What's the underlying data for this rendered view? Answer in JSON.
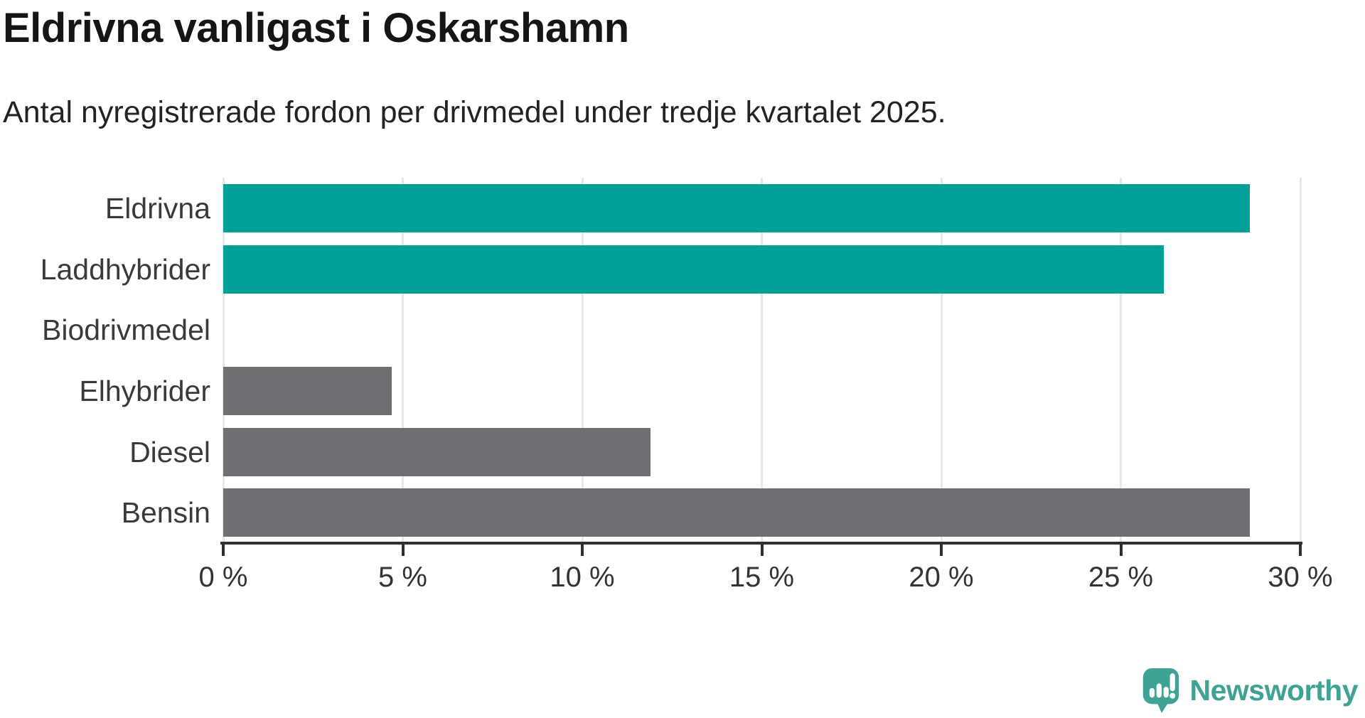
{
  "header": {
    "title": "Eldrivna vanligast i Oskarshamn",
    "subtitle": "Antal nyregistrerade fordon per drivmedel under tredje kvartalet 2025."
  },
  "chart_data": {
    "type": "bar",
    "orientation": "horizontal",
    "title": "Eldrivna vanligast i Oskarshamn",
    "subtitle": "Antal nyregistrerade fordon per drivmedel under tredje kvartalet 2025.",
    "categories": [
      "Eldrivna",
      "Laddhybrider",
      "Biodrivmedel",
      "Elhybrider",
      "Diesel",
      "Bensin"
    ],
    "values": [
      28.6,
      26.2,
      0,
      4.7,
      11.9,
      28.6
    ],
    "bar_colors": [
      "#00a099",
      "#00a099",
      "#6e6e73",
      "#6e6e73",
      "#6e6e73",
      "#6e6e73"
    ],
    "xlabel": "",
    "ylabel": "",
    "xlim": [
      0,
      30
    ],
    "x_ticks": [
      0,
      5,
      10,
      15,
      20,
      25,
      30
    ],
    "x_tick_labels": [
      "0 %",
      "5 %",
      "10 %",
      "15 %",
      "20 %",
      "25 %",
      "30 %"
    ],
    "grid": true,
    "legend": "none"
  },
  "colors": {
    "accent_teal": "#00a099",
    "neutral_gray": "#6e6e73",
    "gridline": "#e7e7e7",
    "axis": "#2f2f2f",
    "logo_teal": "#3ea294"
  },
  "footer": {
    "brand": "Newsworthy"
  }
}
